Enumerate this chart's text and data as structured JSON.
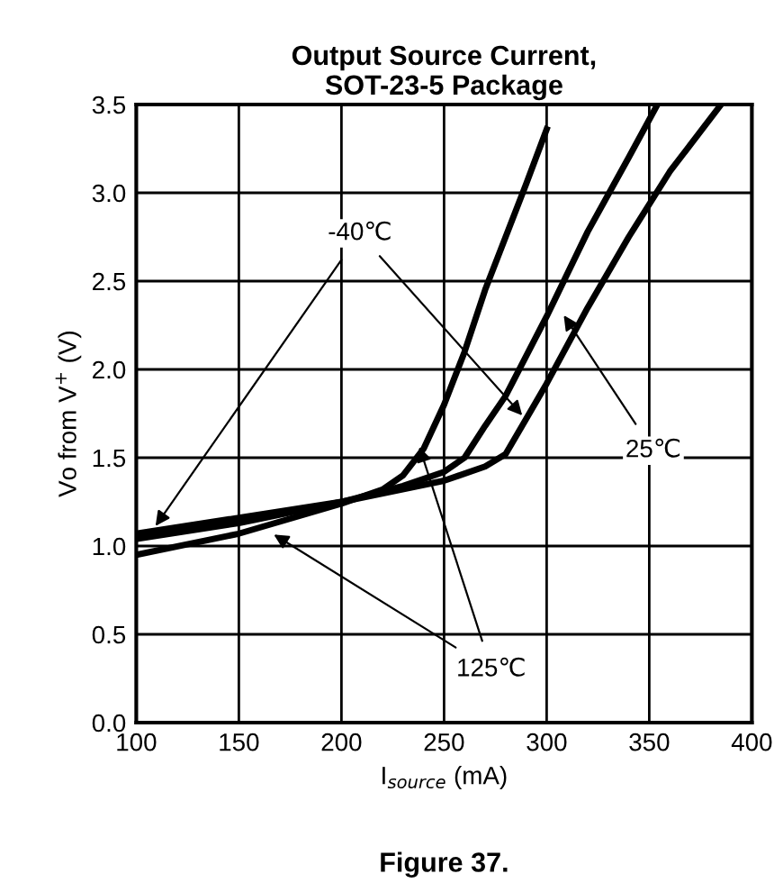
{
  "chart_data": {
    "type": "line",
    "title": "Output Source Current,\nSOT-23-5 Package",
    "xlabel": "I$_{source}$ (mA)",
    "ylabel": "Vo from V$^{+}$ (V)",
    "xlim": [
      100,
      400
    ],
    "xticks": [
      100,
      150,
      200,
      250,
      300,
      350,
      400
    ],
    "ylim": [
      0,
      3.5
    ],
    "yticks": [
      {
        "value": 0,
        "label": "0.0"
      },
      0.5,
      {
        "value": 1,
        "label": "1.0"
      },
      1.5,
      {
        "value": 2,
        "label": "2.0"
      },
      2.5,
      {
        "value": 3,
        "label": "3.0"
      },
      3.5
    ],
    "grid": true,
    "legend": false,
    "marker": "none",
    "line_style": "solid",
    "series": [
      {
        "color": "#000000",
        "x": [
          100,
          150,
          200,
          220,
          230,
          240,
          250,
          260,
          270,
          280,
          290,
          300
        ],
        "values": [
          0.95,
          1.07,
          1.24,
          1.32,
          1.4,
          1.55,
          1.8,
          2.1,
          2.45,
          2.75,
          3.05,
          3.36
        ]
      },
      {
        "color": "#000000",
        "x": [
          100,
          150,
          200,
          230,
          250,
          260,
          270,
          280,
          300,
          320,
          340,
          354
        ],
        "values": [
          1.04,
          1.13,
          1.25,
          1.34,
          1.42,
          1.5,
          1.68,
          1.85,
          2.3,
          2.78,
          3.2,
          3.5
        ]
      },
      {
        "color": "#000000",
        "x": [
          100,
          150,
          200,
          250,
          270,
          280,
          290,
          300,
          320,
          340,
          360,
          385
        ],
        "values": [
          1.07,
          1.16,
          1.25,
          1.37,
          1.45,
          1.52,
          1.72,
          1.92,
          2.35,
          2.75,
          3.12,
          3.5
        ]
      }
    ],
    "annotations": [
      {
        "text": "-40℃",
        "x": 108,
        "y": 1.09
      },
      {
        "text": "25℃",
        "x": 307,
        "y": 2.33
      },
      {
        "text": "125℃",
        "x": 165,
        "y": 1.08
      },
      "Figure 37."
    ]
  }
}
